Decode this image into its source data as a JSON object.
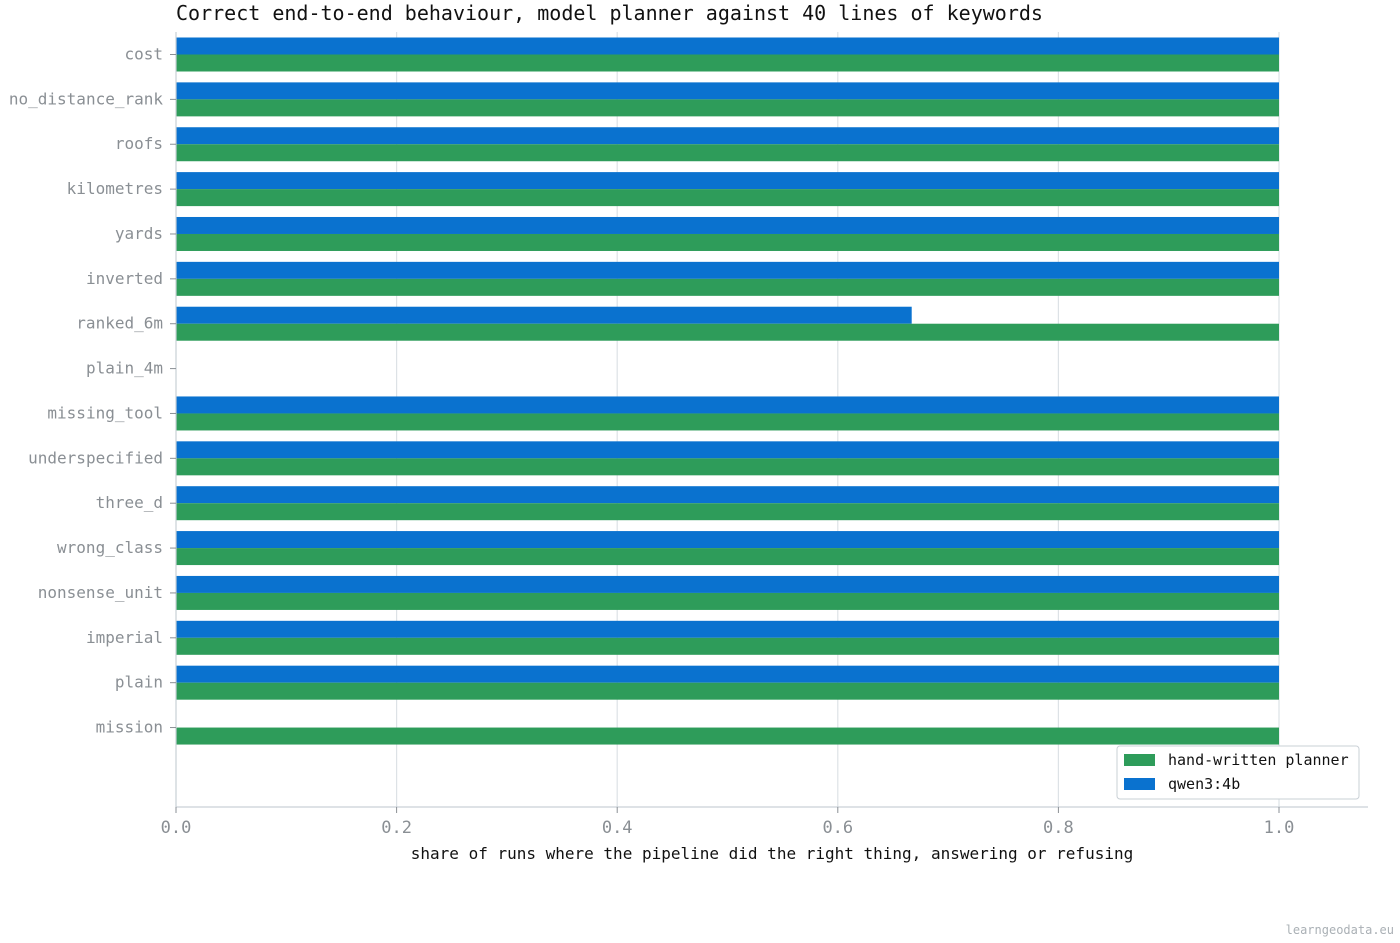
{
  "chart_data": {
    "type": "bar",
    "orientation": "horizontal",
    "title": "Correct end-to-end behaviour, model planner against 40 lines of keywords",
    "xlabel": "share of runs where the pipeline did the right thing, answering or refusing",
    "ylabel": "",
    "xlim": [
      0.0,
      1.0
    ],
    "xticks": [
      "0.0",
      "0.2",
      "0.4",
      "0.6",
      "0.8",
      "1.0"
    ],
    "grid": "vertical",
    "legend_position": "bottom-right",
    "categories": [
      "cost",
      "no_distance_rank",
      "roofs",
      "kilometres",
      "yards",
      "inverted",
      "ranked_6m",
      "plain_4m",
      "missing_tool",
      "underspecified",
      "three_d",
      "wrong_class",
      "nonsense_unit",
      "imperial",
      "plain",
      "mission"
    ],
    "series": [
      {
        "name": "hand-written planner",
        "color": "#2e9c5a",
        "values": [
          1.0,
          1.0,
          1.0,
          1.0,
          1.0,
          1.0,
          1.0,
          0.0,
          1.0,
          1.0,
          1.0,
          1.0,
          1.0,
          1.0,
          1.0,
          1.0
        ]
      },
      {
        "name": "qwen3:4b",
        "color": "#0a72cf",
        "values": [
          1.0,
          1.0,
          1.0,
          1.0,
          1.0,
          1.0,
          0.667,
          0.0,
          1.0,
          1.0,
          1.0,
          1.0,
          1.0,
          1.0,
          1.0,
          0.0
        ]
      }
    ]
  },
  "footer": "learngeodata.eu"
}
